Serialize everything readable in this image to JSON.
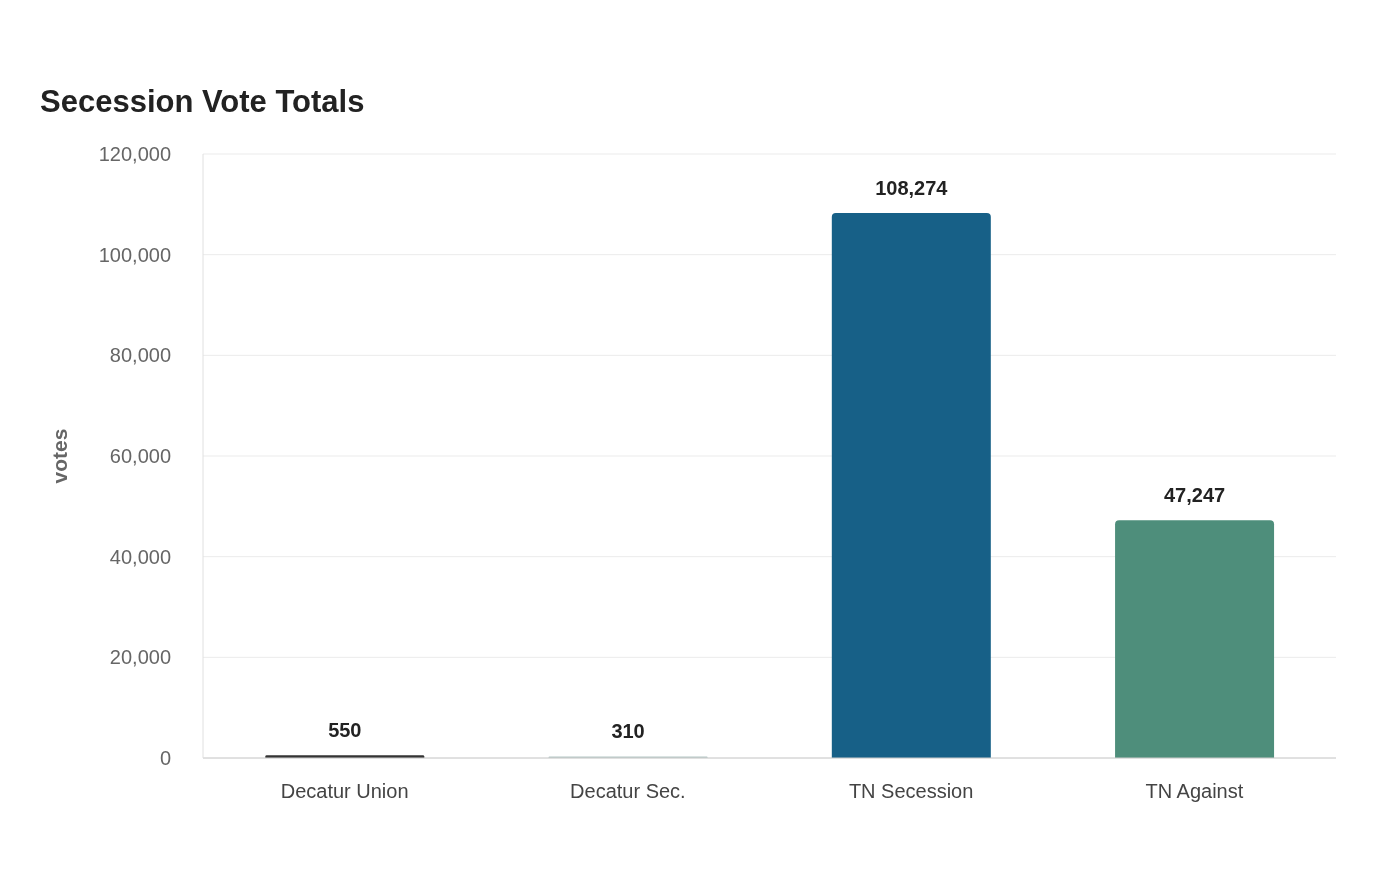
{
  "chart_data": {
    "type": "bar",
    "title": "Secession Vote Totals",
    "ylabel": "votes",
    "categories": [
      "Decatur Union",
      "Decatur Sec.",
      "TN Secession",
      "TN Against"
    ],
    "values": [
      550,
      310,
      108274,
      47247
    ],
    "value_labels": [
      "550",
      "310",
      "108,274",
      "47,247"
    ],
    "colors": [
      "#333333",
      "#b5c7c6",
      "#176087",
      "#4e8e7b"
    ],
    "ylim": [
      0,
      120000
    ],
    "yticks": [
      0,
      {
        "value": 20000,
        "label": "20,000"
      },
      {
        "value": 40000,
        "label": "40,000"
      },
      {
        "value": 60000,
        "label": "60,000"
      },
      {
        "value": 80000,
        "label": "80,000"
      },
      {
        "value": 100000,
        "label": "100,000"
      },
      {
        "value": 120000,
        "label": "120,000"
      }
    ],
    "grid": "y"
  }
}
